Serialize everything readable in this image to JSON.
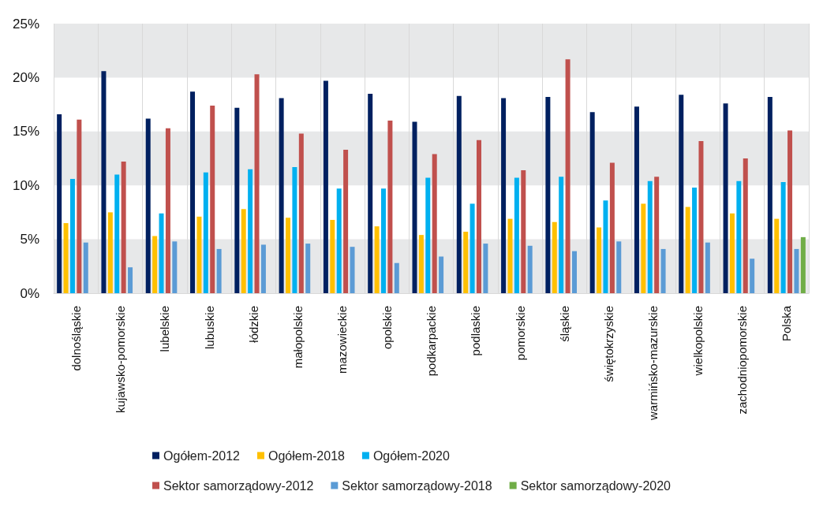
{
  "chart_data": {
    "type": "bar",
    "categories": [
      "dolnośląskie",
      "kujawsko-pomorskie",
      "lubelskie",
      "lubuskie",
      "łódzkie",
      "małopolskie",
      "mazowieckie",
      "opolskie",
      "podkarpackie",
      "podlaskie",
      "pomorskie",
      "śląskie",
      "świętokrzyskie",
      "warmińsko-mazurskie",
      "wielkopolskie",
      "zachodniopomorskie",
      "Polska"
    ],
    "series": [
      {
        "name": "Ogółem-2012",
        "color": "#002060",
        "values": [
          16.6,
          20.6,
          16.2,
          18.7,
          17.2,
          18.1,
          19.7,
          18.5,
          15.9,
          18.3,
          18.1,
          18.2,
          16.8,
          17.3,
          18.4,
          17.6,
          18.2
        ]
      },
      {
        "name": "Ogółem-2018",
        "color": "#ffc000",
        "values": [
          6.5,
          7.5,
          5.3,
          7.1,
          7.8,
          7.0,
          6.8,
          6.2,
          5.4,
          5.7,
          6.9,
          6.6,
          6.1,
          8.3,
          8.0,
          7.4,
          6.9
        ]
      },
      {
        "name": "Ogółem-2020",
        "color": "#00b0f0",
        "values": [
          10.6,
          11.0,
          7.4,
          11.2,
          11.5,
          11.7,
          9.7,
          9.7,
          10.7,
          8.3,
          10.7,
          10.8,
          8.6,
          10.4,
          9.8,
          10.4,
          10.3
        ]
      },
      {
        "name": "Sektor samorządowy-2012",
        "color": "#c0504d",
        "values": [
          16.1,
          12.2,
          15.3,
          17.4,
          20.3,
          14.8,
          13.3,
          16.0,
          12.9,
          14.2,
          11.4,
          21.7,
          12.1,
          10.8,
          14.1,
          12.5,
          15.1
        ]
      },
      {
        "name": "Sektor samorządowy-2018",
        "color": "#5b9bd5",
        "values": [
          4.7,
          2.4,
          4.8,
          4.1,
          4.5,
          4.6,
          4.3,
          2.8,
          3.4,
          4.6,
          4.4,
          3.9,
          4.8,
          4.1,
          4.7,
          3.2,
          4.1
        ]
      },
      {
        "name": "Sektor samorządowy-2020",
        "color": "#70ad47",
        "values": [
          null,
          null,
          null,
          null,
          null,
          null,
          null,
          null,
          null,
          null,
          null,
          null,
          null,
          null,
          null,
          null,
          5.2
        ]
      }
    ],
    "ylim": [
      0,
      25
    ],
    "yticks": [
      {
        "value": 0,
        "label": "0%"
      },
      {
        "value": 5,
        "label": "5%"
      },
      {
        "value": 10,
        "label": "10%"
      },
      {
        "value": 15,
        "label": "15%"
      },
      {
        "value": 20,
        "label": "20%"
      },
      {
        "value": 25,
        "label": "25%"
      }
    ],
    "grid": true,
    "legend": "bottom"
  }
}
